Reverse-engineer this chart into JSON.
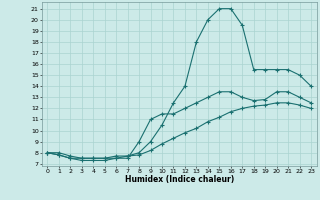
{
  "xlabel": "Humidex (Indice chaleur)",
  "bg_color": "#cceae8",
  "grid_color": "#aad4d0",
  "line_color": "#1a7070",
  "xlim": [
    -0.5,
    23.5
  ],
  "ylim": [
    6.8,
    21.6
  ],
  "xticks": [
    0,
    1,
    2,
    3,
    4,
    5,
    6,
    7,
    8,
    9,
    10,
    11,
    12,
    13,
    14,
    15,
    16,
    17,
    18,
    19,
    20,
    21,
    22,
    23
  ],
  "yticks": [
    7,
    8,
    9,
    10,
    11,
    12,
    13,
    14,
    15,
    16,
    17,
    18,
    19,
    20,
    21
  ],
  "curve1_x": [
    0,
    1,
    2,
    3,
    4,
    5,
    6,
    7,
    8,
    9,
    10,
    11,
    12,
    13,
    14,
    15,
    16,
    17,
    18,
    19,
    20,
    21,
    22,
    23
  ],
  "curve1_y": [
    8,
    8,
    7.7,
    7.5,
    7.5,
    7.5,
    7.5,
    7.7,
    8.0,
    9.0,
    10.5,
    12.5,
    14.0,
    18.0,
    20.0,
    21.0,
    21.0,
    19.5,
    15.5,
    15.5,
    15.5,
    15.5,
    15.0,
    14.0
  ],
  "curve2_x": [
    0,
    1,
    2,
    3,
    4,
    5,
    6,
    7,
    8,
    9,
    10,
    11,
    12,
    13,
    14,
    15,
    16,
    17,
    18,
    19,
    20,
    21,
    22,
    23
  ],
  "curve2_y": [
    8,
    7.8,
    7.5,
    7.3,
    7.3,
    7.3,
    7.5,
    7.5,
    9.0,
    11.0,
    11.5,
    11.5,
    12.0,
    12.5,
    13.0,
    13.5,
    13.5,
    13.0,
    12.7,
    12.8,
    13.5,
    13.5,
    13.0,
    12.5
  ],
  "curve3_x": [
    0,
    1,
    2,
    3,
    4,
    5,
    6,
    7,
    8,
    9,
    10,
    11,
    12,
    13,
    14,
    15,
    16,
    17,
    18,
    19,
    20,
    21,
    22,
    23
  ],
  "curve3_y": [
    8,
    7.8,
    7.5,
    7.5,
    7.5,
    7.5,
    7.7,
    7.7,
    7.8,
    8.2,
    8.8,
    9.3,
    9.8,
    10.2,
    10.8,
    11.2,
    11.7,
    12.0,
    12.2,
    12.3,
    12.5,
    12.5,
    12.3,
    12.0
  ]
}
